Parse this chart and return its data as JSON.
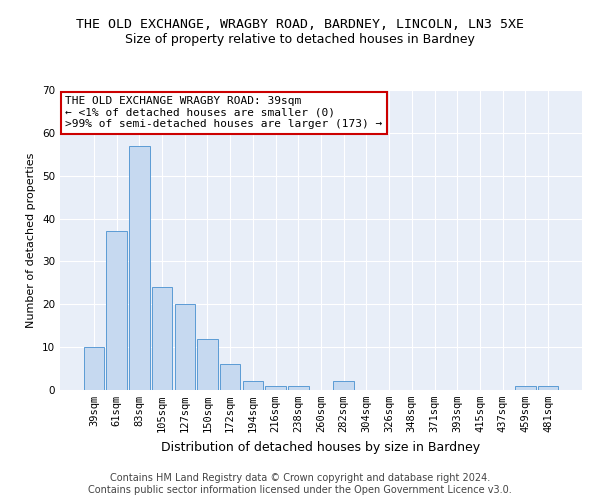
{
  "title": "THE OLD EXCHANGE, WRAGBY ROAD, BARDNEY, LINCOLN, LN3 5XE",
  "subtitle": "Size of property relative to detached houses in Bardney",
  "xlabel": "Distribution of detached houses by size in Bardney",
  "ylabel": "Number of detached properties",
  "categories": [
    "39sqm",
    "61sqm",
    "83sqm",
    "105sqm",
    "127sqm",
    "150sqm",
    "172sqm",
    "194sqm",
    "216sqm",
    "238sqm",
    "260sqm",
    "282sqm",
    "304sqm",
    "326sqm",
    "348sqm",
    "371sqm",
    "393sqm",
    "415sqm",
    "437sqm",
    "459sqm",
    "481sqm"
  ],
  "values": [
    10,
    37,
    57,
    24,
    20,
    12,
    6,
    2,
    1,
    1,
    0,
    2,
    0,
    0,
    0,
    0,
    0,
    0,
    0,
    1,
    1
  ],
  "bar_color": "#c6d9f0",
  "bar_edge_color": "#5b9bd5",
  "annotation_line1": "THE OLD EXCHANGE WRAGBY ROAD: 39sqm",
  "annotation_line2": "← <1% of detached houses are smaller (0)",
  "annotation_line3": ">99% of semi-detached houses are larger (173) →",
  "annotation_box_color": "#ffffff",
  "annotation_box_edge": "#cc0000",
  "ylim": [
    0,
    70
  ],
  "yticks": [
    0,
    10,
    20,
    30,
    40,
    50,
    60,
    70
  ],
  "background_color": "#e8eef8",
  "footer_text": "Contains HM Land Registry data © Crown copyright and database right 2024.\nContains public sector information licensed under the Open Government Licence v3.0.",
  "title_fontsize": 9.5,
  "subtitle_fontsize": 9,
  "xlabel_fontsize": 9,
  "ylabel_fontsize": 8,
  "tick_fontsize": 7.5,
  "annotation_fontsize": 8,
  "footer_fontsize": 7
}
